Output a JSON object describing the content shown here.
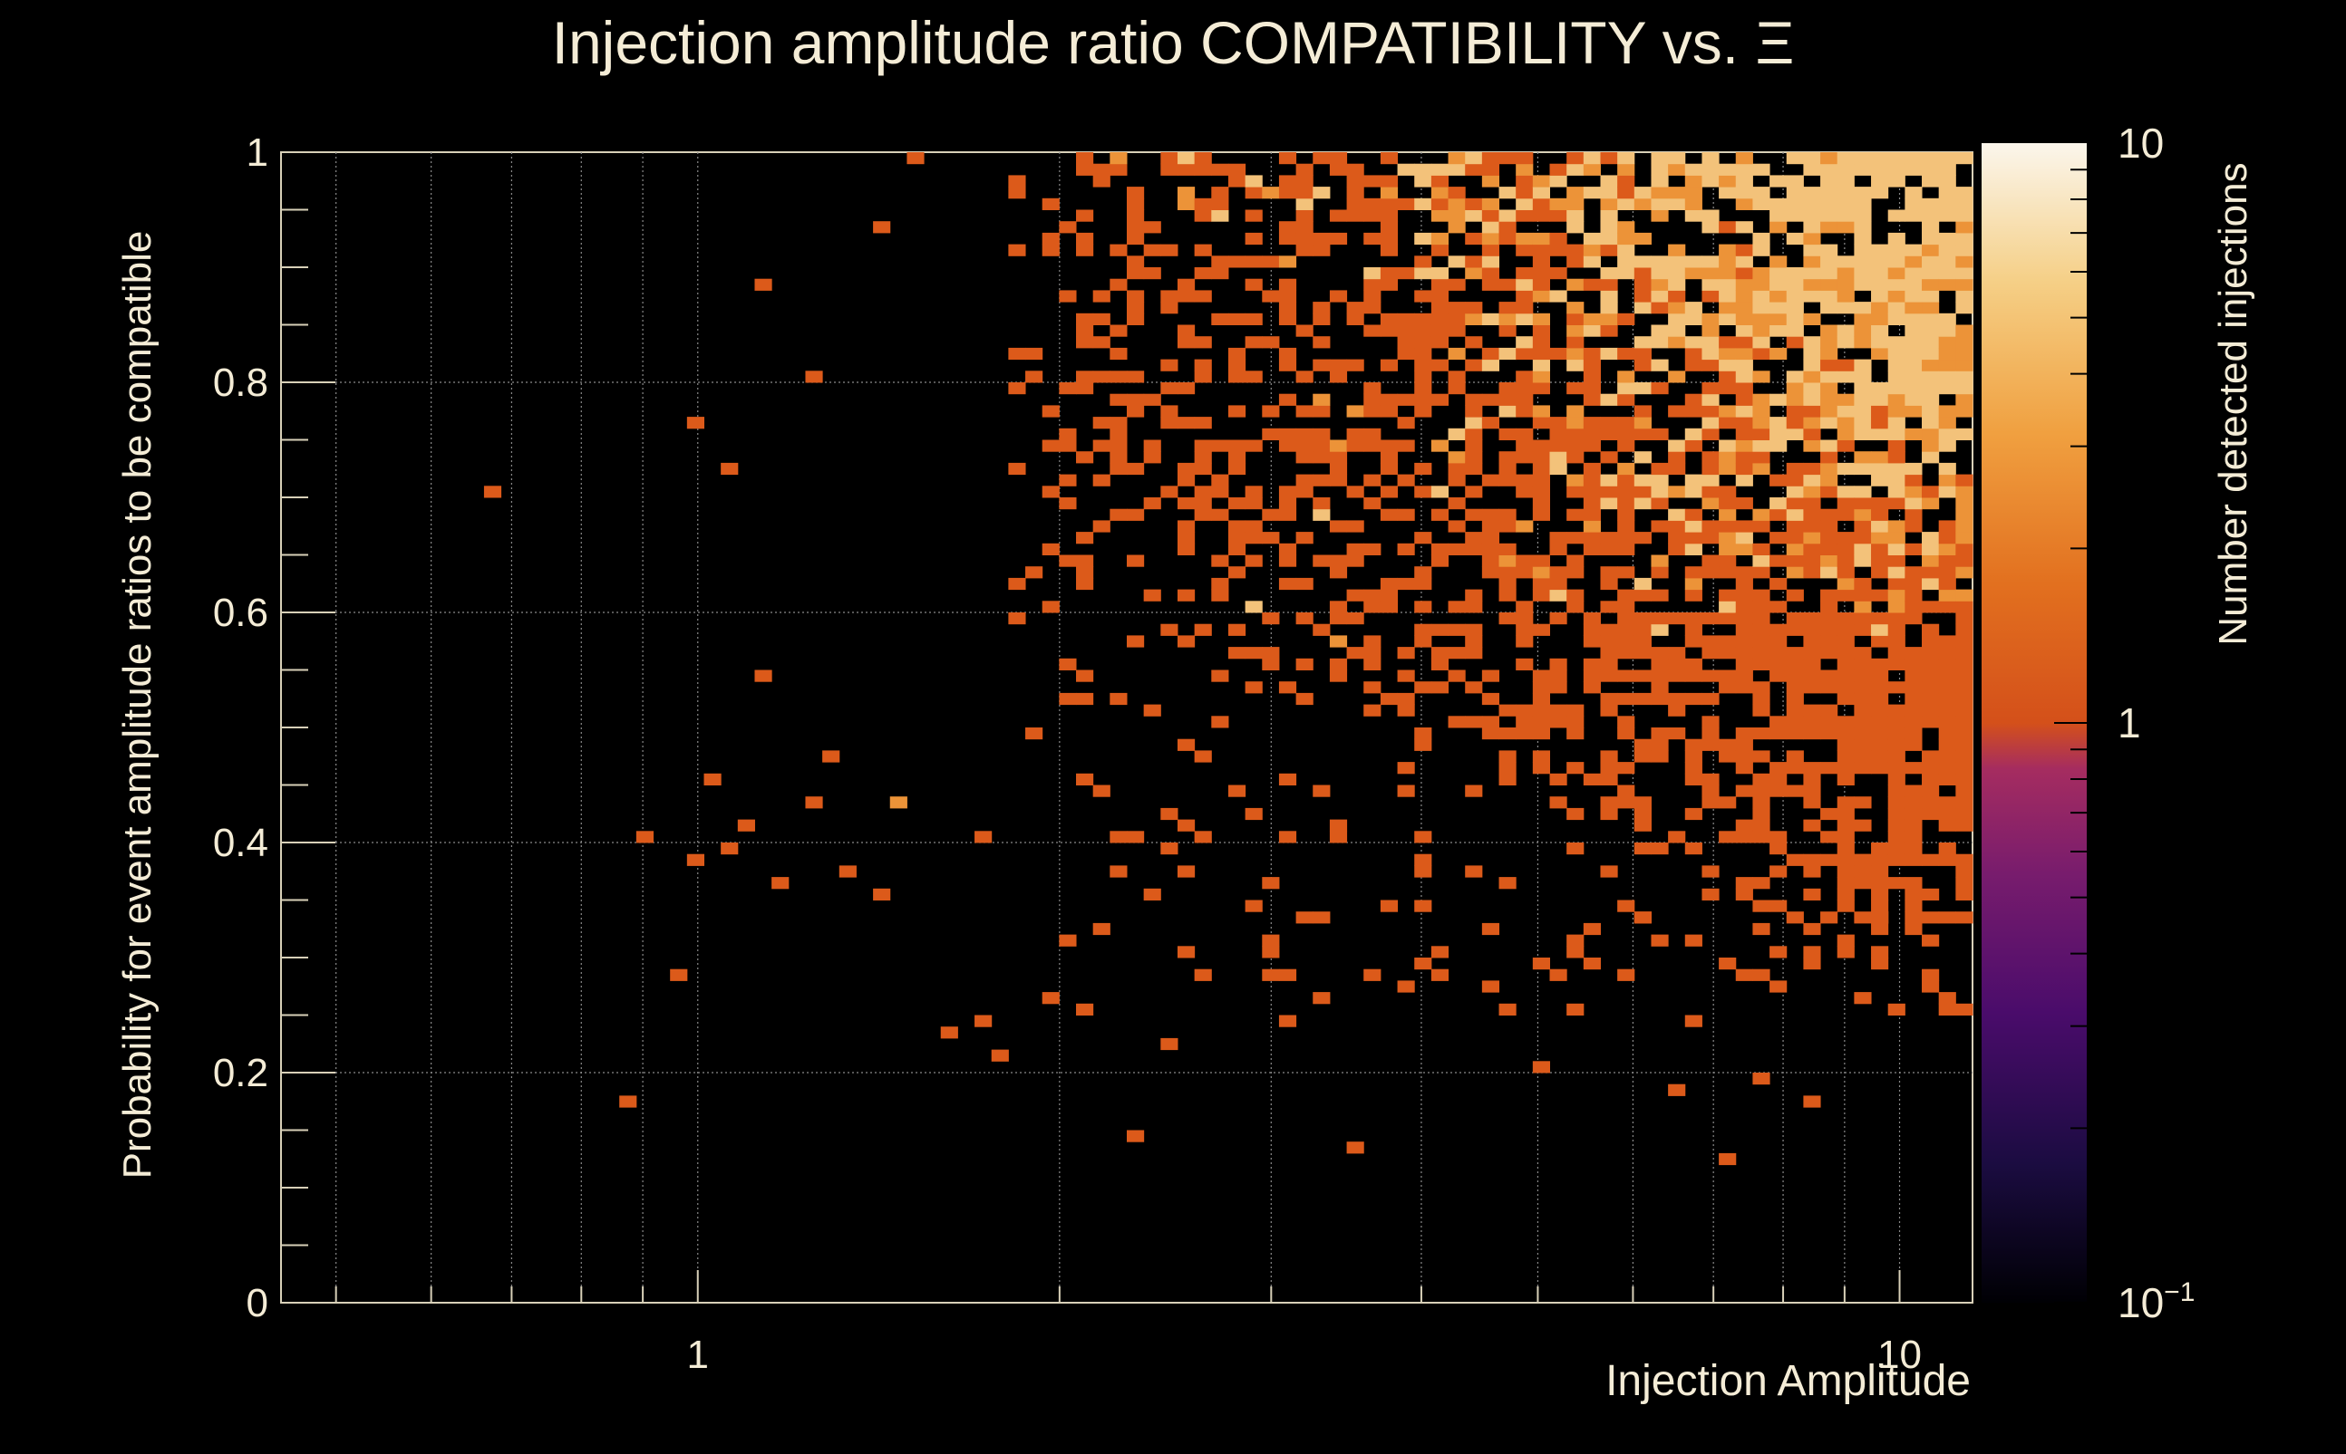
{
  "chart_data": {
    "type": "heatmap",
    "title": "Injection amplitude ratio COMPATIBILITY vs.  Ξ",
    "xlabel": "Injection Amplitude",
    "ylabel": "Probability for event amplitude ratios to be compatible",
    "zlabel": "Number detected injections",
    "x_scale": "log",
    "xlim": [
      0.45,
      11.5
    ],
    "ylim": [
      0,
      1
    ],
    "z_scale": "log",
    "zlim": [
      0.1,
      10
    ],
    "grid": true,
    "x_ticks": [
      {
        "value": 1,
        "label": "1"
      },
      {
        "value": 10,
        "label": "10"
      }
    ],
    "y_ticks": [
      {
        "value": 0,
        "label": "0"
      },
      {
        "value": 0.2,
        "label": "0.2"
      },
      {
        "value": 0.4,
        "label": "0.4"
      },
      {
        "value": 0.6,
        "label": "0.6"
      },
      {
        "value": 0.8,
        "label": "0.8"
      },
      {
        "value": 1,
        "label": "1"
      }
    ],
    "colorbar_ticks": [
      {
        "value": 10,
        "label": "10"
      },
      {
        "value": 1,
        "label": "1"
      },
      {
        "value": 0.1,
        "label": "10",
        "sup": "−1"
      }
    ],
    "bins": {
      "x_count": 100,
      "y_count": 100
    },
    "colormap": [
      "#000004",
      "#1b0c41",
      "#4a0c6b",
      "#781c6d",
      "#a52c60",
      "#cf4446",
      "#ed6925",
      "#fb9b06",
      "#f7d13d",
      "#fcffa4"
    ],
    "cells": [
      [
        0.68,
        0.7,
        1
      ],
      [
        0.88,
        0.175,
        1
      ],
      [
        0.9,
        0.4,
        1
      ],
      [
        0.96,
        0.28,
        1
      ],
      [
        0.99,
        0.38,
        1
      ],
      [
        1.0,
        0.76,
        1
      ],
      [
        1.04,
        0.45,
        1
      ],
      [
        1.07,
        0.39,
        1
      ],
      [
        1.1,
        0.41,
        1
      ],
      [
        1.07,
        0.72,
        1
      ],
      [
        1.13,
        0.54,
        1
      ],
      [
        1.13,
        0.88,
        1
      ],
      [
        1.18,
        0.36,
        1
      ],
      [
        1.25,
        0.43,
        1
      ],
      [
        1.25,
        0.8,
        1
      ],
      [
        1.3,
        0.47,
        1
      ],
      [
        1.32,
        0.37,
        1
      ],
      [
        1.42,
        0.35,
        1
      ],
      [
        1.4,
        0.93,
        1
      ],
      [
        1.45,
        0.43,
        2
      ],
      [
        1.5,
        0.99,
        1
      ],
      [
        1.6,
        0.23,
        1
      ],
      [
        1.7,
        0.4,
        1
      ],
      [
        1.75,
        0.24,
        1
      ],
      [
        1.8,
        0.21,
        1
      ],
      [
        2.1,
        0.25,
        1
      ],
      [
        2.3,
        0.14,
        1
      ],
      [
        2.5,
        0.22,
        1
      ],
      [
        3.0,
        0.36,
        1
      ],
      [
        3.1,
        0.24,
        1
      ],
      [
        3.3,
        0.26,
        1
      ],
      [
        3.5,
        0.13,
        1
      ],
      [
        3.6,
        0.28,
        1
      ],
      [
        4.0,
        0.37,
        1
      ],
      [
        4.2,
        0.3,
        1
      ],
      [
        5.0,
        0.2,
        1
      ],
      [
        5.2,
        0.45,
        1
      ],
      [
        5.8,
        0.37,
        1
      ],
      [
        6.2,
        0.33,
        1
      ],
      [
        6.6,
        0.18,
        1
      ],
      [
        6.8,
        0.24,
        1
      ],
      [
        6.8,
        0.31,
        1
      ],
      [
        7.2,
        0.12,
        1
      ],
      [
        7.4,
        0.28,
        1
      ],
      [
        7.6,
        0.19,
        1
      ],
      [
        8.0,
        0.34,
        1
      ],
      [
        8.4,
        0.17,
        1
      ],
      [
        9.0,
        0.31,
        1
      ],
      [
        9.2,
        0.38,
        1
      ],
      [
        9.5,
        0.33,
        2
      ]
    ]
  }
}
